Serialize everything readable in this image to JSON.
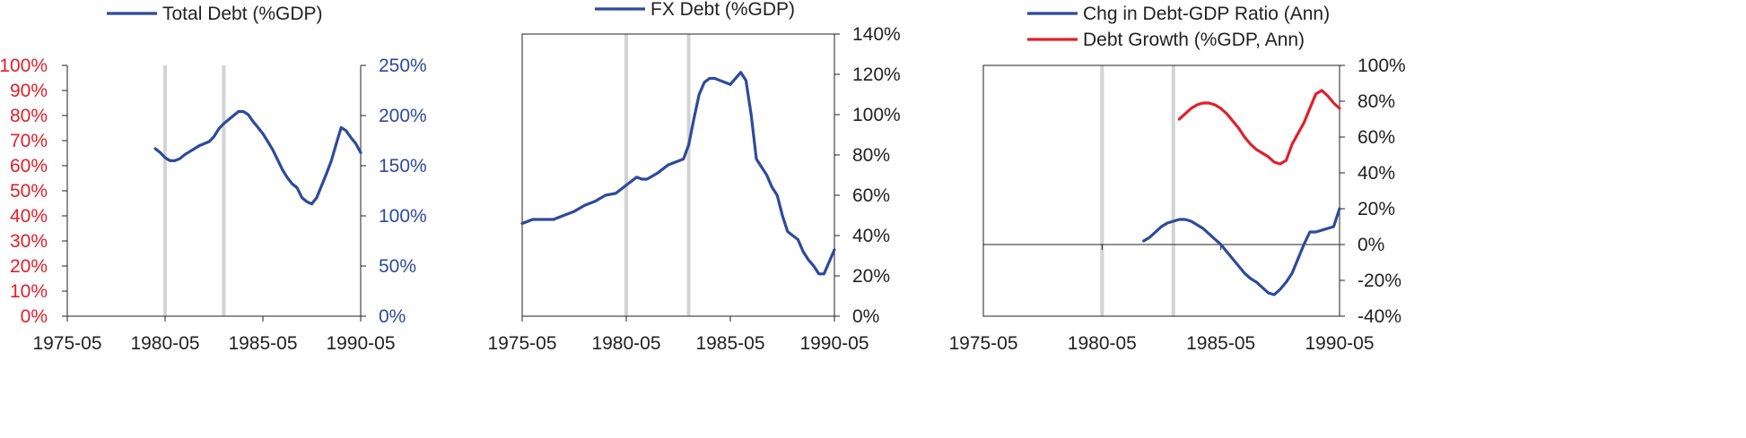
{
  "colors": {
    "blue": "#2e4a9a",
    "red": "#e0202a",
    "axis": "#222222",
    "band": "#d3d3d3"
  },
  "chart_data": [
    {
      "type": "line",
      "x_ticks": [
        "1975-05",
        "1980-05",
        "1985-05",
        "1990-05"
      ],
      "xlim": [
        "1975-05",
        "1990-05"
      ],
      "bands": [
        "1980-05",
        "1983-05"
      ],
      "grid": false,
      "legend_position": "top-center",
      "y_left": {
        "range": [
          0,
          1.0
        ],
        "ticks": [
          "0%",
          "10%",
          "20%",
          "30%",
          "40%",
          "50%",
          "60%",
          "70%",
          "80%",
          "90%",
          "100%"
        ],
        "color": "red"
      },
      "y_right": {
        "range": [
          0,
          2.5
        ],
        "ticks": [
          "0%",
          "50%",
          "100%",
          "150%",
          "200%",
          "250%"
        ],
        "color": "blue"
      },
      "series": [
        {
          "name": "Total Debt (%GDP)",
          "color": "blue",
          "axis": "right",
          "x": [
            "1979-11",
            "1980-02",
            "1980-05",
            "1980-08",
            "1980-11",
            "1981-02",
            "1981-05",
            "1981-08",
            "1981-11",
            "1982-02",
            "1982-05",
            "1982-08",
            "1982-11",
            "1983-02",
            "1983-05",
            "1983-08",
            "1983-11",
            "1984-02",
            "1984-05",
            "1984-08",
            "1984-11",
            "1985-02",
            "1985-05",
            "1985-08",
            "1985-11",
            "1986-02",
            "1986-05",
            "1986-08",
            "1986-11",
            "1987-02",
            "1987-05",
            "1987-08",
            "1987-11",
            "1988-02",
            "1988-05",
            "1988-08",
            "1988-11",
            "1989-02",
            "1989-05",
            "1989-08",
            "1989-11",
            "1990-02",
            "1990-05"
          ],
          "y": [
            1.67,
            1.63,
            1.58,
            1.55,
            1.55,
            1.57,
            1.61,
            1.64,
            1.67,
            1.7,
            1.72,
            1.74,
            1.79,
            1.87,
            1.92,
            1.96,
            2.0,
            2.04,
            2.04,
            2.01,
            1.94,
            1.88,
            1.82,
            1.74,
            1.66,
            1.56,
            1.46,
            1.38,
            1.32,
            1.28,
            1.18,
            1.14,
            1.12,
            1.18,
            1.3,
            1.42,
            1.55,
            1.72,
            1.88,
            1.85,
            1.78,
            1.72,
            1.63
          ]
        }
      ]
    },
    {
      "type": "line",
      "x_ticks": [
        "1975-05",
        "1980-05",
        "1985-05",
        "1990-05"
      ],
      "xlim": [
        "1975-05",
        "1990-05"
      ],
      "bands": [
        "1980-05",
        "1983-05"
      ],
      "grid": false,
      "legend_position": "top-center",
      "y_right": {
        "range": [
          0,
          1.4
        ],
        "ticks": [
          "0%",
          "20%",
          "40%",
          "60%",
          "80%",
          "100%",
          "120%",
          "140%"
        ],
        "color": "axis"
      },
      "series": [
        {
          "name": "FX Debt (%GDP)",
          "color": "blue",
          "axis": "right",
          "x": [
            "1975-05",
            "1975-11",
            "1976-05",
            "1976-11",
            "1977-05",
            "1977-11",
            "1978-05",
            "1978-11",
            "1979-05",
            "1979-11",
            "1980-05",
            "1980-11",
            "1981-02",
            "1981-05",
            "1981-11",
            "1982-05",
            "1982-11",
            "1983-02",
            "1983-05",
            "1983-08",
            "1983-11",
            "1984-02",
            "1984-05",
            "1984-08",
            "1984-11",
            "1985-05",
            "1985-08",
            "1985-11",
            "1986-02",
            "1986-05",
            "1986-08",
            "1986-11",
            "1987-02",
            "1987-05",
            "1987-08",
            "1987-11",
            "1988-02",
            "1988-05",
            "1988-08",
            "1988-11",
            "1989-02",
            "1989-05",
            "1989-08",
            "1989-11",
            "1990-02",
            "1990-05"
          ],
          "y": [
            0.46,
            0.48,
            0.48,
            0.48,
            0.5,
            0.52,
            0.55,
            0.57,
            0.6,
            0.61,
            0.65,
            0.69,
            0.68,
            0.68,
            0.71,
            0.75,
            0.77,
            0.78,
            0.85,
            0.98,
            1.1,
            1.16,
            1.18,
            1.18,
            1.17,
            1.15,
            1.18,
            1.21,
            1.17,
            1.0,
            0.78,
            0.74,
            0.7,
            0.64,
            0.6,
            0.5,
            0.42,
            0.4,
            0.38,
            0.32,
            0.28,
            0.25,
            0.21,
            0.21,
            0.27,
            0.33
          ]
        }
      ]
    },
    {
      "type": "line",
      "x_ticks": [
        "1975-05",
        "1980-05",
        "1985-05",
        "1990-05"
      ],
      "xlim": [
        "1975-05",
        "1990-05"
      ],
      "bands": [
        "1980-05",
        "1983-05"
      ],
      "grid": false,
      "legend_position": "top-center",
      "y_right": {
        "range": [
          -0.4,
          1.0
        ],
        "ticks": [
          "-40%",
          "-20%",
          "0%",
          "20%",
          "40%",
          "60%",
          "80%",
          "100%"
        ],
        "color": "axis"
      },
      "series": [
        {
          "name": "Chg in Debt-GDP Ratio (Ann)",
          "color": "blue",
          "axis": "right",
          "x": [
            "1982-02",
            "1982-05",
            "1982-08",
            "1982-11",
            "1983-02",
            "1983-05",
            "1983-08",
            "1983-11",
            "1984-02",
            "1984-05",
            "1984-08",
            "1984-11",
            "1985-02",
            "1985-05",
            "1985-08",
            "1985-11",
            "1986-02",
            "1986-05",
            "1986-08",
            "1986-11",
            "1987-02",
            "1987-05",
            "1987-08",
            "1987-11",
            "1988-02",
            "1988-05",
            "1988-08",
            "1988-11",
            "1989-02",
            "1989-05",
            "1989-08",
            "1989-11",
            "1990-02",
            "1990-05"
          ],
          "y": [
            0.02,
            0.04,
            0.07,
            0.1,
            0.12,
            0.13,
            0.14,
            0.14,
            0.13,
            0.11,
            0.09,
            0.06,
            0.03,
            0.0,
            -0.04,
            -0.08,
            -0.12,
            -0.16,
            -0.19,
            -0.21,
            -0.24,
            -0.27,
            -0.28,
            -0.25,
            -0.21,
            -0.16,
            -0.08,
            0.0,
            0.07,
            0.07,
            0.08,
            0.09,
            0.1,
            0.2
          ]
        },
        {
          "name": "Debt Growth (%GDP, Ann)",
          "color": "red",
          "axis": "right",
          "x": [
            "1983-08",
            "1983-11",
            "1984-02",
            "1984-05",
            "1984-08",
            "1984-11",
            "1985-02",
            "1985-05",
            "1985-08",
            "1985-11",
            "1986-02",
            "1986-05",
            "1986-08",
            "1986-11",
            "1987-02",
            "1987-05",
            "1987-08",
            "1987-11",
            "1988-02",
            "1988-05",
            "1988-08",
            "1988-11",
            "1989-02",
            "1989-05",
            "1989-08",
            "1989-11",
            "1990-02",
            "1990-05"
          ],
          "y": [
            0.7,
            0.73,
            0.76,
            0.78,
            0.79,
            0.79,
            0.78,
            0.76,
            0.73,
            0.69,
            0.65,
            0.6,
            0.56,
            0.53,
            0.51,
            0.49,
            0.46,
            0.45,
            0.47,
            0.56,
            0.62,
            0.68,
            0.76,
            0.84,
            0.86,
            0.83,
            0.79,
            0.76
          ]
        }
      ]
    }
  ]
}
